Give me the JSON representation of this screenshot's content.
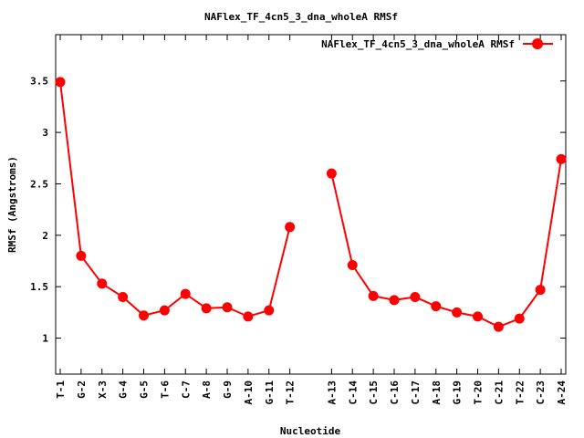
{
  "chart_data": {
    "type": "line",
    "title": "NAFlex_TF_4cn5_3_dna_wholeA RMSf",
    "xlabel": "Nucleotide",
    "ylabel": "RMSf (Angstroms)",
    "ylim": [
      0.65,
      3.95
    ],
    "yticks": [
      "1",
      "1.5",
      "2",
      "2.5",
      "3",
      "3.5"
    ],
    "grid": false,
    "legend_position": "top-right",
    "categories": [
      "T-1",
      "G-2",
      "X-3",
      "G-4",
      "G-5",
      "T-6",
      "C-7",
      "A-8",
      "G-9",
      "A-10",
      "G-11",
      "T-12",
      "",
      "A-13",
      "C-14",
      "C-15",
      "C-16",
      "C-17",
      "A-18",
      "G-19",
      "T-20",
      "C-21",
      "T-22",
      "C-23",
      "A-24"
    ],
    "series": [
      {
        "name": "NAFlex_TF_4cn5_3_dna_wholeA RMSf",
        "color": "#ff0000",
        "values": [
          3.49,
          1.8,
          1.53,
          1.4,
          1.22,
          1.27,
          1.43,
          1.29,
          1.3,
          1.21,
          1.27,
          2.08,
          null,
          2.6,
          1.71,
          1.41,
          1.37,
          1.4,
          1.31,
          1.25,
          1.21,
          1.11,
          1.19,
          1.47,
          2.74
        ]
      }
    ]
  }
}
